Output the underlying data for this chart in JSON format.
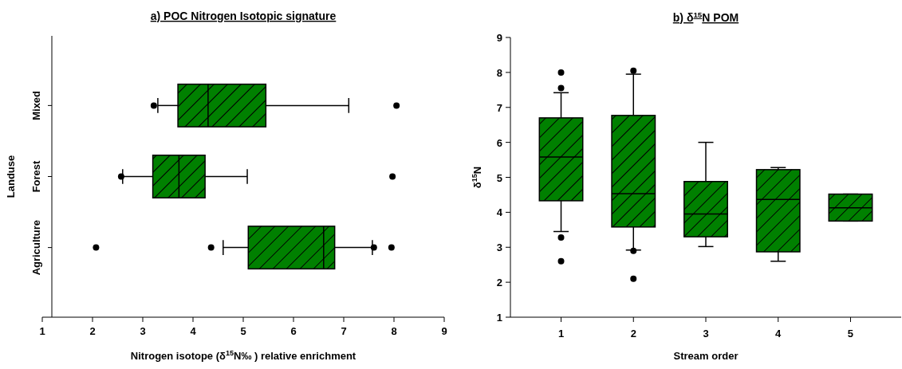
{
  "chart_data": [
    {
      "type": "box",
      "title": "a) POC Nitrogen Isotopic signature",
      "xlabel": "Nitrogen isotope (δ$^{15}$N‰ ) relative enrichment",
      "ylabel": "Landuse",
      "orientation": "horizontal",
      "categories": [
        "Mixed",
        "Forest",
        "Agriculture"
      ],
      "xlim": [
        1,
        9
      ],
      "xticks": [
        1,
        2,
        3,
        4,
        5,
        6,
        7,
        8,
        9
      ],
      "grid": false,
      "series": [
        {
          "color": "#008000",
          "boxes": [
            {
              "low": 3.3,
              "q1": 3.7,
              "median": 4.3,
              "q3": 5.45,
              "high": 7.1,
              "outliers": [
                3.22,
                8.05
              ]
            },
            {
              "low": 2.6,
              "q1": 3.2,
              "median": 3.72,
              "q3": 4.24,
              "high": 5.08,
              "outliers": [
                2.57,
                7.97
              ]
            },
            {
              "low": 4.6,
              "q1": 5.1,
              "median": 6.6,
              "q3": 6.82,
              "high": 7.57,
              "outliers": [
                2.07,
                4.36,
                7.6,
                7.95
              ]
            }
          ]
        }
      ]
    },
    {
      "type": "box",
      "title": "b) δ$^{15}$N POM",
      "xlabel": "Stream order",
      "ylabel": "δ$^{15}$N",
      "categories": [
        "1",
        "2",
        "3",
        "4",
        "5"
      ],
      "ylim": [
        1,
        9
      ],
      "yticks": [
        1,
        2,
        3,
        4,
        5,
        6,
        7,
        8,
        9
      ],
      "grid": false,
      "series": [
        {
          "color": "#008000",
          "boxes": [
            {
              "low": 3.45,
              "q1": 4.33,
              "median": 5.58,
              "q3": 6.7,
              "high": 7.42,
              "outliers": [
                2.6,
                3.28,
                7.55,
                8.0
              ]
            },
            {
              "low": 2.92,
              "q1": 3.58,
              "median": 4.53,
              "q3": 6.77,
              "high": 7.95,
              "outliers": [
                2.1,
                2.9,
                8.05
              ]
            },
            {
              "low": 3.02,
              "q1": 3.3,
              "median": 3.95,
              "q3": 4.88,
              "high": 6.0
            },
            {
              "low": 2.6,
              "q1": 2.87,
              "median": 4.37,
              "q3": 5.22,
              "high": 5.28
            },
            {
              "low": 3.75,
              "q1": 3.75,
              "median": 4.13,
              "q3": 4.52,
              "high": 4.52
            }
          ]
        }
      ]
    }
  ]
}
